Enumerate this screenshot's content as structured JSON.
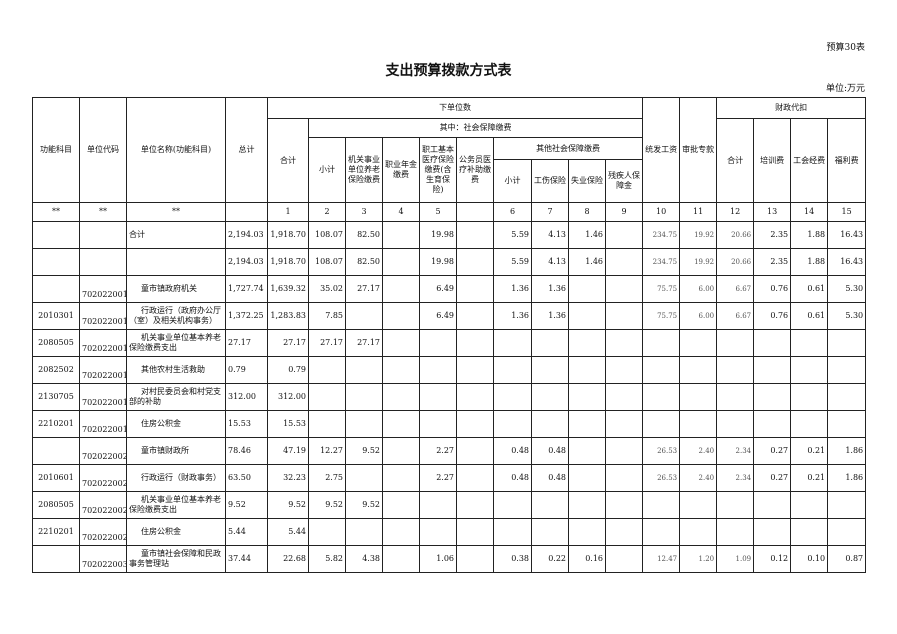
{
  "form_number": "预算30表",
  "title": "支出预算拨款方式表",
  "unit": "单位:万元",
  "headers": {
    "func_subject": "功能科目",
    "unit_code": "单位代码",
    "unit_name": "单位名称(功能科目)",
    "grand_total": "总计",
    "lower_unit": "下单位数",
    "lower_total": "合计",
    "social_security": "其中：社会保障缴费",
    "subtotal": "小计",
    "pension": "机关事业单位养老保险缴费",
    "annuity": "职业年金缴费",
    "medical": "职工基本医疗保险缴费(含生育保险)",
    "civil_medical": "公务员医疗补助缴费",
    "other_social": "其他社会保障缴费",
    "other_subtotal": "小计",
    "injury": "工伤保险",
    "unemployment": "失业保险",
    "disabled": "残疾人保障金",
    "unified_salary": "统发工资",
    "approved_funds": "审批专款",
    "fiscal_deduction": "财政代扣",
    "fiscal_total": "合计",
    "training": "培训费",
    "union": "工会经费",
    "welfare": "福利费"
  },
  "index_row": [
    "**",
    "**",
    "**",
    "",
    "1",
    "2",
    "3",
    "4",
    "5",
    "",
    "6",
    "7",
    "8",
    "9",
    "10",
    "11",
    "12",
    "13",
    "14",
    "15"
  ],
  "rows": [
    [
      "",
      "",
      "合计",
      "2,194.03",
      "1,918.70",
      "108.07",
      "82.50",
      "",
      "19.98",
      "",
      "5.59",
      "4.13",
      "1.46",
      "",
      "234.75",
      "19.92",
      "20.66",
      "2.35",
      "1.88",
      "16.43"
    ],
    [
      "",
      "",
      "",
      "2,194.03",
      "1,918.70",
      "108.07",
      "82.50",
      "",
      "19.98",
      "",
      "5.59",
      "4.13",
      "1.46",
      "",
      "234.75",
      "19.92",
      "20.66",
      "2.35",
      "1.88",
      "16.43"
    ],
    [
      "",
      "702022001",
      "童市镇政府机关",
      "1,727.74",
      "1,639.32",
      "35.02",
      "27.17",
      "",
      "6.49",
      "",
      "1.36",
      "1.36",
      "",
      "",
      "75.75",
      "6.00",
      "6.67",
      "0.76",
      "0.61",
      "5.30"
    ],
    [
      "2010301",
      "702022001",
      "行政运行（政府办公厅（室）及相关机构事务）",
      "1,372.25",
      "1,283.83",
      "7.85",
      "",
      "",
      "6.49",
      "",
      "1.36",
      "1.36",
      "",
      "",
      "75.75",
      "6.00",
      "6.67",
      "0.76",
      "0.61",
      "5.30"
    ],
    [
      "2080505",
      "702022001",
      "机关事业单位基本养老保险缴费支出",
      "27.17",
      "27.17",
      "27.17",
      "27.17",
      "",
      "",
      "",
      "",
      "",
      "",
      "",
      "",
      "",
      "",
      "",
      "",
      ""
    ],
    [
      "2082502",
      "702022001",
      "其他农村生活救助",
      "0.79",
      "0.79",
      "",
      "",
      "",
      "",
      "",
      "",
      "",
      "",
      "",
      "",
      "",
      "",
      "",
      "",
      ""
    ],
    [
      "2130705",
      "702022001",
      "对村民委员会和村党支部的补助",
      "312.00",
      "312.00",
      "",
      "",
      "",
      "",
      "",
      "",
      "",
      "",
      "",
      "",
      "",
      "",
      "",
      "",
      ""
    ],
    [
      "2210201",
      "702022001",
      "住房公积金",
      "15.53",
      "15.53",
      "",
      "",
      "",
      "",
      "",
      "",
      "",
      "",
      "",
      "",
      "",
      "",
      "",
      "",
      ""
    ],
    [
      "",
      "702022002",
      "童市镇财政所",
      "78.46",
      "47.19",
      "12.27",
      "9.52",
      "",
      "2.27",
      "",
      "0.48",
      "0.48",
      "",
      "",
      "26.53",
      "2.40",
      "2.34",
      "0.27",
      "0.21",
      "1.86"
    ],
    [
      "2010601",
      "702022002",
      "行政运行（财政事务）",
      "63.50",
      "32.23",
      "2.75",
      "",
      "",
      "2.27",
      "",
      "0.48",
      "0.48",
      "",
      "",
      "26.53",
      "2.40",
      "2.34",
      "0.27",
      "0.21",
      "1.86"
    ],
    [
      "2080505",
      "702022002",
      "机关事业单位基本养老保险缴费支出",
      "9.52",
      "9.52",
      "9.52",
      "9.52",
      "",
      "",
      "",
      "",
      "",
      "",
      "",
      "",
      "",
      "",
      "",
      "",
      ""
    ],
    [
      "2210201",
      "702022002",
      "住房公积金",
      "5.44",
      "5.44",
      "",
      "",
      "",
      "",
      "",
      "",
      "",
      "",
      "",
      "",
      "",
      "",
      "",
      "",
      ""
    ],
    [
      "",
      "702022003",
      "童市镇社会保障和民政事务管理站",
      "37.44",
      "22.68",
      "5.82",
      "4.38",
      "",
      "1.06",
      "",
      "0.38",
      "0.22",
      "0.16",
      "",
      "12.47",
      "1.20",
      "1.09",
      "0.12",
      "0.10",
      "0.87"
    ]
  ]
}
